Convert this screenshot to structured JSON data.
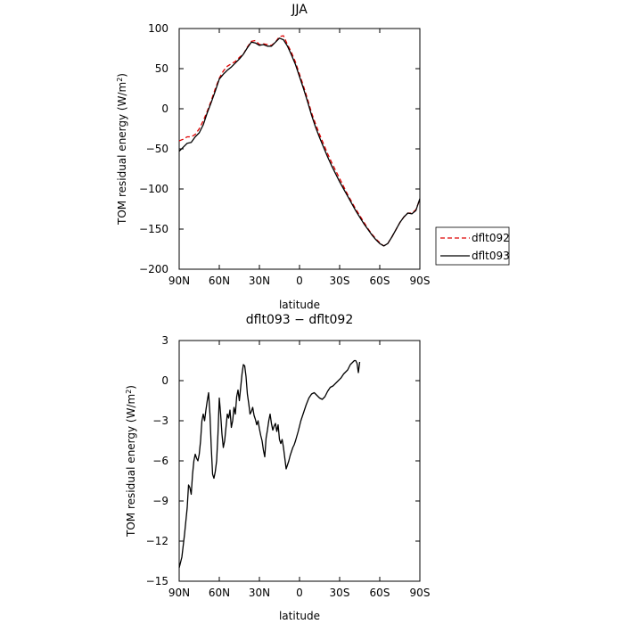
{
  "chart_data": [
    {
      "type": "line",
      "title": "JJA",
      "xlabel": "latitude",
      "ylabel": "TOM residual energy (W/m²)",
      "ylabel_text": "TOM residual energy (W/m",
      "ylabel_sup": "2",
      "ylabel_close": ")",
      "xlim": [
        90,
        -90
      ],
      "ylim": [
        -200,
        100
      ],
      "x_ticks": [
        90,
        60,
        30,
        0,
        -30,
        -60,
        -90
      ],
      "x_tick_labels": [
        "90N",
        "60N",
        "30N",
        "0",
        "30S",
        "60S",
        "90S"
      ],
      "y_ticks": [
        -200,
        -150,
        -100,
        -50,
        0,
        50,
        100
      ],
      "y_tick_labels": [
        "−200",
        "−150",
        "−100",
        "−50",
        "0",
        "50",
        "100"
      ],
      "grid": false,
      "legend_position": "outside-right",
      "series": [
        {
          "name": "dflt092",
          "color": "#dd0000",
          "style": "dashed",
          "points": [
            [
              90,
              -40
            ],
            [
              87,
              -38
            ],
            [
              84,
              -35
            ],
            [
              81,
              -35
            ],
            [
              78,
              -32
            ],
            [
              75,
              -25
            ],
            [
              72,
              -15
            ],
            [
              69,
              -3
            ],
            [
              66,
              10
            ],
            [
              63,
              25
            ],
            [
              60,
              38
            ],
            [
              57,
              47
            ],
            [
              54,
              53
            ],
            [
              51,
              56
            ],
            [
              48,
              59
            ],
            [
              45,
              64
            ],
            [
              42,
              68
            ],
            [
              39,
              77
            ],
            [
              36,
              84
            ],
            [
              33,
              85
            ],
            [
              30,
              80
            ],
            [
              27,
              81
            ],
            [
              24,
              80
            ],
            [
              21,
              79
            ],
            [
              18,
              83
            ],
            [
              15,
              90
            ],
            [
              12,
              91
            ],
            [
              9,
              80
            ],
            [
              6,
              70
            ],
            [
              3,
              58
            ],
            [
              0,
              43
            ],
            [
              -3,
              28
            ],
            [
              -6,
              12
            ],
            [
              -9,
              -5
            ],
            [
              -12,
              -19
            ],
            [
              -15,
              -32
            ],
            [
              -18,
              -44
            ],
            [
              -21,
              -56
            ],
            [
              -24,
              -67
            ],
            [
              -27,
              -77
            ],
            [
              -30,
              -87
            ],
            [
              -33,
              -97
            ],
            [
              -36,
              -107
            ],
            [
              -39,
              -116
            ],
            [
              -42,
              -125
            ],
            [
              -45,
              -133
            ],
            [
              -48,
              -141
            ],
            [
              -51,
              -149
            ],
            [
              -54,
              -156
            ],
            [
              -57,
              -162
            ],
            [
              -60,
              -167
            ],
            [
              -63,
              -171
            ],
            [
              -66,
              -168
            ],
            [
              -69,
              -160
            ],
            [
              -72,
              -151
            ],
            [
              -75,
              -142
            ],
            [
              -78,
              -135
            ],
            [
              -81,
              -130
            ],
            [
              -84,
              -130
            ],
            [
              -87,
              -126
            ],
            [
              -90,
              -113
            ]
          ]
        },
        {
          "name": "dflt093",
          "color": "#000000",
          "style": "solid",
          "points": [
            [
              90,
              -53
            ],
            [
              87,
              -48
            ],
            [
              84,
              -43
            ],
            [
              81,
              -42
            ],
            [
              78,
              -35
            ],
            [
              75,
              -30
            ],
            [
              72,
              -20
            ],
            [
              69,
              -5
            ],
            [
              66,
              8
            ],
            [
              63,
              22
            ],
            [
              60,
              37
            ],
            [
              57,
              43
            ],
            [
              54,
              48
            ],
            [
              51,
              52
            ],
            [
              48,
              57
            ],
            [
              45,
              62
            ],
            [
              42,
              68
            ],
            [
              39,
              76
            ],
            [
              36,
              83
            ],
            [
              33,
              82
            ],
            [
              30,
              79
            ],
            [
              27,
              80
            ],
            [
              24,
              78
            ],
            [
              21,
              78
            ],
            [
              18,
              83
            ],
            [
              15,
              88
            ],
            [
              12,
              86
            ],
            [
              9,
              78
            ],
            [
              6,
              67
            ],
            [
              3,
              55
            ],
            [
              0,
              40
            ],
            [
              -3,
              25
            ],
            [
              -6,
              9
            ],
            [
              -9,
              -8
            ],
            [
              -12,
              -23
            ],
            [
              -15,
              -36
            ],
            [
              -18,
              -48
            ],
            [
              -21,
              -60
            ],
            [
              -24,
              -71
            ],
            [
              -27,
              -81
            ],
            [
              -30,
              -91
            ],
            [
              -33,
              -100
            ],
            [
              -36,
              -109
            ],
            [
              -39,
              -118
            ],
            [
              -42,
              -127
            ],
            [
              -45,
              -135
            ],
            [
              -48,
              -143
            ],
            [
              -51,
              -150
            ],
            [
              -54,
              -157
            ],
            [
              -57,
              -163
            ],
            [
              -60,
              -168
            ],
            [
              -63,
              -171
            ],
            [
              -66,
              -168
            ],
            [
              -69,
              -160
            ],
            [
              -72,
              -151
            ],
            [
              -75,
              -142
            ],
            [
              -78,
              -135
            ],
            [
              -81,
              -130
            ],
            [
              -84,
              -131
            ],
            [
              -87,
              -127
            ],
            [
              -90,
              -112
            ]
          ]
        }
      ]
    },
    {
      "type": "line",
      "title": "dflt093 − dflt092",
      "xlabel": "latitude",
      "ylabel": "TOM residual energy (W/m²)",
      "ylabel_text": "TOM residual energy (W/m",
      "ylabel_sup": "2",
      "ylabel_close": ")",
      "xlim": [
        90,
        -90
      ],
      "ylim": [
        -15,
        3
      ],
      "x_ticks": [
        90,
        60,
        30,
        0,
        -30,
        -60,
        -90
      ],
      "x_tick_labels": [
        "90N",
        "60N",
        "30N",
        "0",
        "30S",
        "60S",
        "90S"
      ],
      "y_ticks": [
        -15,
        -12,
        -9,
        -6,
        -3,
        0,
        3
      ],
      "y_tick_labels": [
        "−15",
        "−12",
        "−9",
        "−6",
        "−3",
        "0",
        "3"
      ],
      "grid": false,
      "series": [
        {
          "name": "dflt093 − dflt092",
          "color": "#000000",
          "style": "solid",
          "points": [
            [
              90,
              -14
            ],
            [
              88,
              -13.2
            ],
            [
              86,
              -11.5
            ],
            [
              84,
              -9.5
            ],
            [
              83,
              -7.8
            ],
            [
              82,
              -8
            ],
            [
              81,
              -8.5
            ],
            [
              80,
              -7
            ],
            [
              79,
              -6
            ],
            [
              78,
              -5.5
            ],
            [
              77,
              -5.8
            ],
            [
              76,
              -6
            ],
            [
              75,
              -5.5
            ],
            [
              74,
              -4.5
            ],
            [
              73,
              -3
            ],
            [
              72,
              -2.5
            ],
            [
              71,
              -3
            ],
            [
              70,
              -2.2
            ],
            [
              69,
              -1.5
            ],
            [
              68,
              -0.9
            ],
            [
              67,
              -2.5
            ],
            [
              66,
              -5
            ],
            [
              65,
              -7
            ],
            [
              64,
              -7.3
            ],
            [
              63,
              -6.8
            ],
            [
              62,
              -6
            ],
            [
              61,
              -4
            ],
            [
              60,
              -1.3
            ],
            [
              59,
              -2.5
            ],
            [
              58,
              -4
            ],
            [
              57,
              -5
            ],
            [
              56,
              -4.5
            ],
            [
              55,
              -3.5
            ],
            [
              54,
              -2.5
            ],
            [
              53,
              -2.8
            ],
            [
              52,
              -2.2
            ],
            [
              51,
              -3.5
            ],
            [
              50,
              -3
            ],
            [
              49,
              -2
            ],
            [
              48,
              -2.5
            ],
            [
              47,
              -1.2
            ],
            [
              46,
              -0.7
            ],
            [
              45,
              -1.5
            ],
            [
              44,
              -0.5
            ],
            [
              43,
              0.5
            ],
            [
              42,
              1.2
            ],
            [
              41,
              1.1
            ],
            [
              40,
              0.3
            ],
            [
              39,
              -1
            ],
            [
              38,
              -1.7
            ],
            [
              37,
              -2.5
            ],
            [
              36,
              -2.3
            ],
            [
              35,
              -2
            ],
            [
              34,
              -2.6
            ],
            [
              33,
              -2.9
            ],
            [
              32,
              -3.3
            ],
            [
              31,
              -3
            ],
            [
              30,
              -3.6
            ],
            [
              29,
              -4.1
            ],
            [
              28,
              -4.5
            ],
            [
              27,
              -5.2
            ],
            [
              26,
              -5.7
            ],
            [
              25,
              -4.3
            ],
            [
              24,
              -3.7
            ],
            [
              23,
              -3
            ],
            [
              22,
              -2.5
            ],
            [
              21,
              -3.2
            ],
            [
              20,
              -3.7
            ],
            [
              19,
              -3.4
            ],
            [
              18,
              -3.2
            ],
            [
              17,
              -3.8
            ],
            [
              16,
              -3.3
            ],
            [
              15,
              -4.4
            ],
            [
              14,
              -4.7
            ],
            [
              13,
              -4.4
            ],
            [
              12,
              -5
            ],
            [
              11,
              -5.8
            ],
            [
              10,
              -6.6
            ],
            [
              9,
              -6.3
            ],
            [
              8,
              -6
            ],
            [
              7,
              -5.6
            ],
            [
              6,
              -5.3
            ],
            [
              5,
              -5
            ],
            [
              4,
              -4.8
            ],
            [
              3,
              -4.5
            ],
            [
              1,
              -3.8
            ],
            [
              -1,
              -3
            ],
            [
              -3,
              -2.4
            ],
            [
              -5,
              -1.8
            ],
            [
              -7,
              -1.3
            ],
            [
              -9,
              -1
            ],
            [
              -11,
              -0.9
            ],
            [
              -13,
              -1.1
            ],
            [
              -15,
              -1.3
            ],
            [
              -17,
              -1.4
            ],
            [
              -19,
              -1.2
            ],
            [
              -21,
              -0.8
            ],
            [
              -23,
              -0.5
            ],
            [
              -25,
              -0.4
            ],
            [
              -27,
              -0.2
            ],
            [
              -29,
              0
            ],
            [
              -31,
              0.2
            ],
            [
              -33,
              0.5
            ],
            [
              -35,
              0.7
            ],
            [
              -36,
              0.8
            ],
            [
              -37,
              1
            ],
            [
              -38,
              1.2
            ],
            [
              -39,
              1.3
            ],
            [
              -40,
              1.4
            ],
            [
              -41,
              1.5
            ],
            [
              -42,
              1.5
            ],
            [
              -43,
              1.3
            ],
            [
              -44,
              0.6
            ],
            [
              -45,
              1.4
            ]
          ]
        }
      ]
    }
  ],
  "legend": {
    "entries": [
      {
        "label": "dflt092",
        "color": "#dd0000",
        "style": "dashed"
      },
      {
        "label": "dflt093",
        "color": "#000000",
        "style": "solid"
      }
    ]
  }
}
